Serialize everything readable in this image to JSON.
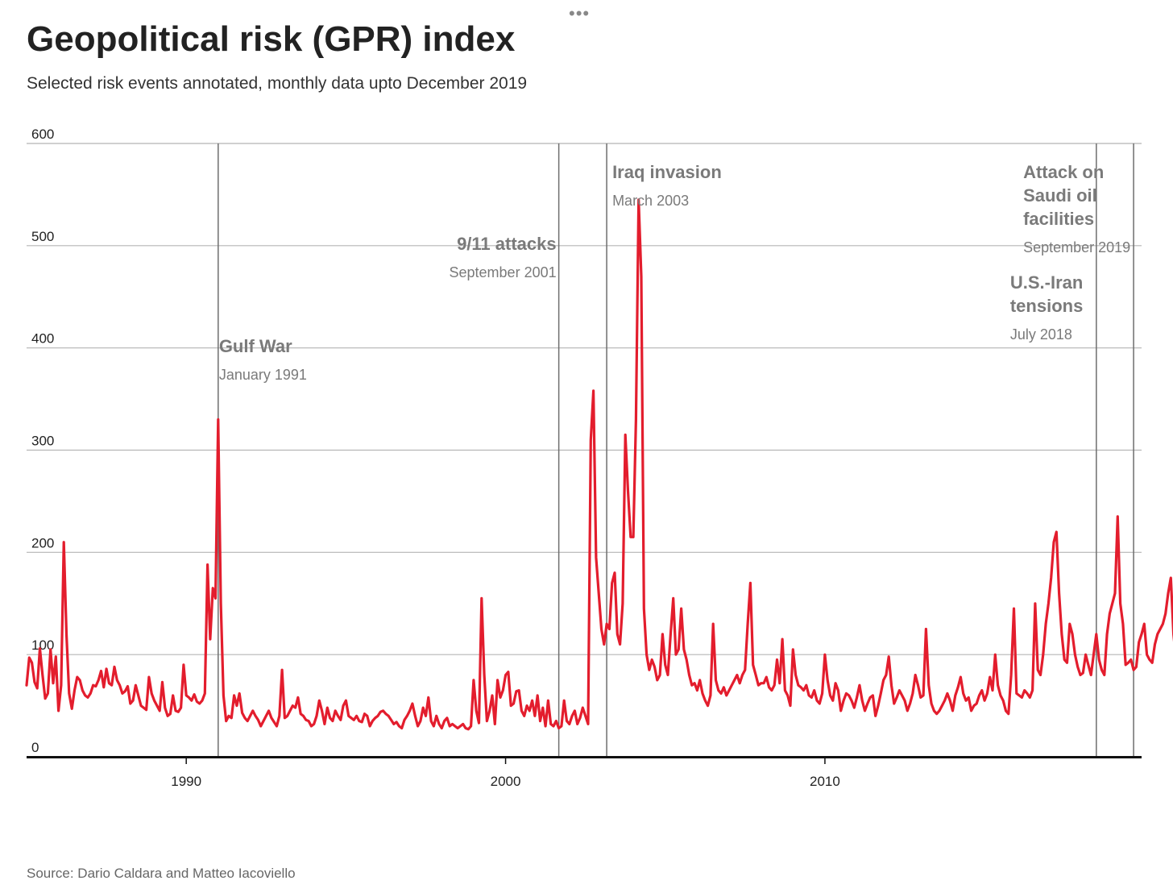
{
  "header": {
    "more_icon": "ellipsis-icon",
    "title": "Geopolitical risk (GPR) index",
    "subtitle": "Selected risk events annotated, monthly data upto December 2019"
  },
  "footer": {
    "source": "Source: Dario Caldara and Matteo Iacoviello"
  },
  "chart_data": {
    "type": "line",
    "title": "Geopolitical risk (GPR) index",
    "subtitle": "Selected risk events annotated, monthly data upto December 2019",
    "ylim": [
      0,
      600
    ],
    "yticks": [
      0,
      100,
      200,
      300,
      400,
      500,
      600
    ],
    "xlim": [
      "1985-01",
      "2019-12"
    ],
    "xticks": [
      "1990",
      "2000",
      "2010"
    ],
    "grid": "horizontal",
    "line_color": "#e31d2d",
    "series": [
      {
        "start": "1985-01",
        "frequency": "monthly",
        "values": [
          70,
          97,
          92,
          73,
          67,
          106,
          80,
          57,
          62,
          105,
          72,
          98,
          45,
          70,
          210,
          120,
          62,
          47,
          65,
          78,
          75,
          65,
          60,
          58,
          62,
          70,
          69,
          75,
          84,
          68,
          86,
          72,
          70,
          88,
          75,
          70,
          62,
          64,
          69,
          52,
          55,
          70,
          60,
          50,
          48,
          46,
          78,
          62,
          55,
          50,
          45,
          73,
          48,
          40,
          42,
          60,
          45,
          44,
          48,
          90,
          60,
          58,
          55,
          61,
          54,
          52,
          55,
          62,
          188,
          115,
          165,
          155,
          330,
          150,
          60,
          35,
          40,
          38,
          60,
          50,
          62,
          43,
          38,
          35,
          40,
          45,
          40,
          36,
          30,
          35,
          40,
          45,
          38,
          34,
          30,
          40,
          85,
          38,
          40,
          45,
          50,
          48,
          58,
          42,
          40,
          36,
          35,
          30,
          32,
          40,
          55,
          45,
          32,
          48,
          38,
          35,
          45,
          40,
          36,
          50,
          55,
          40,
          38,
          36,
          40,
          35,
          34,
          42,
          40,
          30,
          35,
          38,
          40,
          44,
          45,
          42,
          40,
          36,
          32,
          34,
          30,
          28,
          36,
          40,
          45,
          52,
          40,
          30,
          35,
          48,
          40,
          58,
          35,
          30,
          40,
          32,
          28,
          35,
          38,
          30,
          32,
          30,
          28,
          30,
          32,
          28,
          27,
          30,
          75,
          45,
          33,
          155,
          80,
          35,
          45,
          60,
          32,
          75,
          58,
          65,
          80,
          83,
          50,
          52,
          64,
          65,
          45,
          40,
          50,
          45,
          55,
          40,
          60,
          35,
          48,
          30,
          55,
          32,
          30,
          35,
          28,
          30,
          55,
          35,
          32,
          40,
          45,
          32,
          38,
          48,
          40,
          32,
          310,
          358,
          195,
          160,
          125,
          110,
          130,
          125,
          170,
          180,
          120,
          110,
          150,
          315,
          260,
          215,
          215,
          330,
          545,
          470,
          145,
          100,
          85,
          95,
          88,
          75,
          80,
          120,
          90,
          80,
          120,
          155,
          100,
          105,
          145,
          105,
          95,
          80,
          70,
          72,
          65,
          75,
          62,
          55,
          50,
          60,
          130,
          75,
          65,
          62,
          68,
          60,
          65,
          70,
          75,
          80,
          72,
          80,
          85,
          130,
          170,
          90,
          80,
          70,
          72,
          72,
          78,
          68,
          65,
          70,
          95,
          72,
          115,
          65,
          60,
          50,
          105,
          80,
          70,
          68,
          65,
          70,
          60,
          58,
          65,
          55,
          52,
          62,
          100,
          75,
          60,
          55,
          72,
          65,
          45,
          55,
          62,
          60,
          55,
          48,
          58,
          70,
          55,
          45,
          52,
          58,
          60,
          40,
          50,
          62,
          75,
          80,
          98,
          70,
          52,
          58,
          65,
          60,
          55,
          45,
          52,
          62,
          80,
          70,
          58,
          60,
          125,
          70,
          52,
          45,
          42,
          45,
          50,
          55,
          62,
          55,
          45,
          60,
          68,
          78,
          62,
          55,
          58,
          45,
          50,
          52,
          60,
          65,
          55,
          62,
          78,
          65,
          100,
          70,
          60,
          55,
          45,
          42,
          80,
          145,
          62,
          60,
          58,
          65,
          62,
          58,
          65,
          150,
          85,
          80,
          100,
          130,
          150,
          175,
          210,
          220,
          160,
          120,
          95,
          92,
          130,
          120,
          100,
          88,
          80,
          82,
          100,
          90,
          80,
          100,
          120,
          95,
          85,
          80,
          120,
          140,
          150,
          160,
          235,
          150,
          130,
          90,
          92,
          95,
          85,
          88,
          112,
          120,
          130,
          100,
          95,
          92,
          110,
          120,
          125,
          130,
          140,
          160,
          175,
          120,
          95,
          200,
          145,
          140,
          115,
          120,
          160,
          130,
          95,
          190,
          235,
          175,
          200,
          238,
          160,
          130,
          150,
          160,
          145,
          170,
          185,
          150,
          120,
          105,
          190,
          240,
          200,
          255,
          190,
          190,
          110,
          90
        ]
      }
    ],
    "annotations": [
      {
        "date": "1991-01",
        "label": "Gulf War",
        "date_label": "January 1991"
      },
      {
        "date": "2001-09",
        "label": "9/11 attacks",
        "date_label": "September 2001"
      },
      {
        "date": "2003-03",
        "label": "Iraq invasion",
        "date_label": "March 2003"
      },
      {
        "date": "2018-07",
        "label": "U.S.-Iran tensions",
        "date_label": "July 2018"
      },
      {
        "date": "2019-09",
        "label": "Attack on Saudi oil facilities",
        "date_label": "September 2019"
      }
    ]
  }
}
